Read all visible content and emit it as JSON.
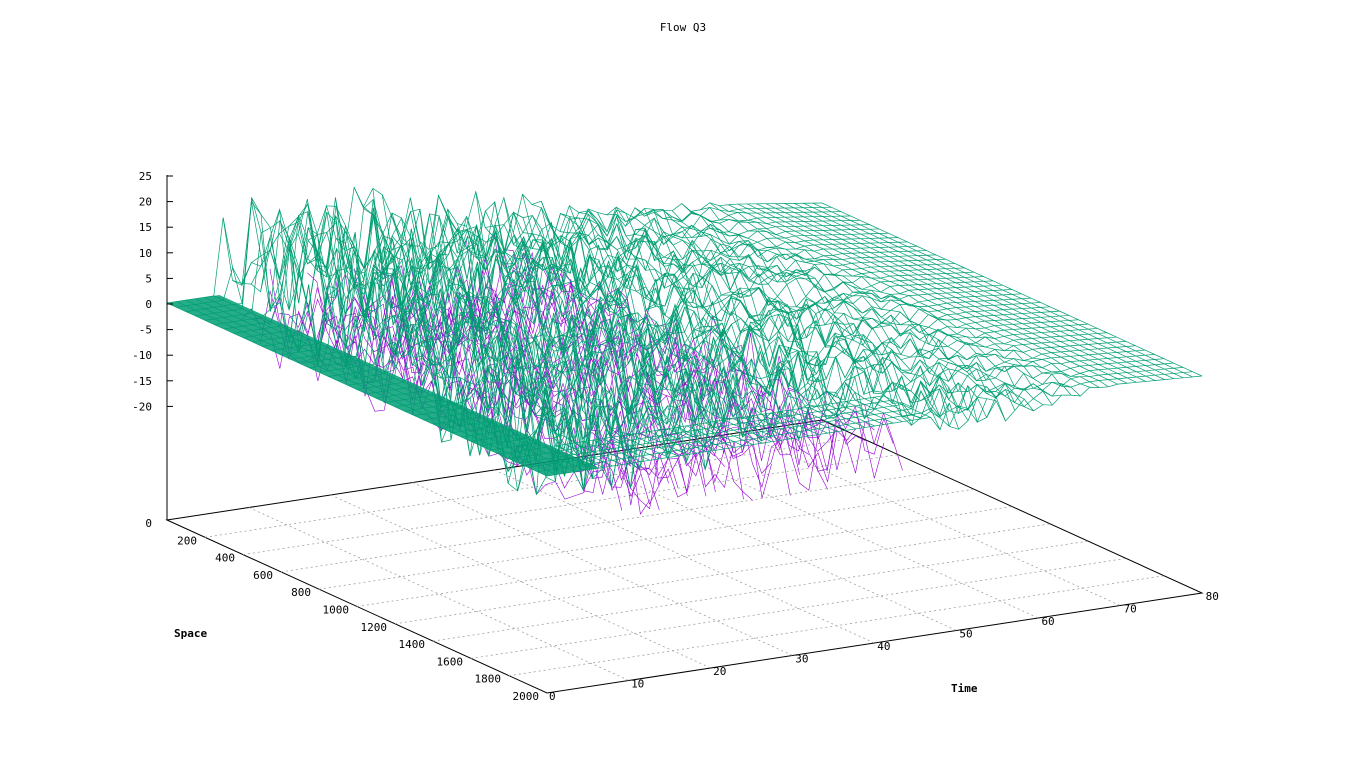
{
  "chart_data": {
    "type": "surface",
    "title": "Flow Q3",
    "xlabel": "Space",
    "ylabel": "Time",
    "zlabel": "",
    "x_ticks": [
      "200",
      "400",
      "600",
      "800",
      "1000",
      "1200",
      "1400",
      "1600",
      "1800",
      "2000"
    ],
    "y_ticks": [
      "0",
      "10",
      "20",
      "30",
      "40",
      "50",
      "60",
      "70",
      "80"
    ],
    "z_ticks": [
      "25",
      "20",
      "15",
      "10",
      "5",
      "0",
      "-5",
      "-10",
      "-15",
      "-20"
    ],
    "base_tick": "0",
    "xlim": [
      0,
      2000
    ],
    "ylim": [
      0,
      80
    ],
    "zlim": [
      -25,
      25
    ],
    "grid": true,
    "legend": "none",
    "description_values": {
      "flat_level": 0,
      "max_flow": 25,
      "min_flow": -25
    },
    "colors": {
      "top_surface": "#009e73",
      "under_surface": "#9400d3",
      "edge_accent": "#1f3fbf",
      "grid": "#a0a0a0",
      "axis": "#000000"
    }
  }
}
